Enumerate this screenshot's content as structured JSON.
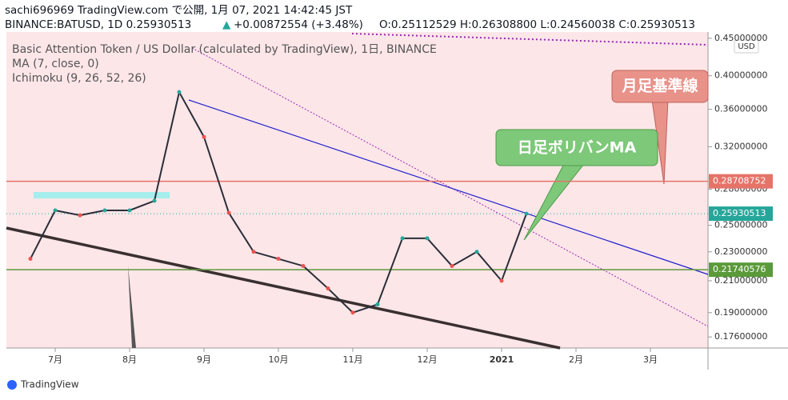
{
  "chart_data": {
    "type": "line",
    "header_line1": "sachi696969 TradingView.com で公開, 1月 07, 2021 14:42:45 JST",
    "header_symbol": "BINANCE:BATUSD, 1D 0.25930513",
    "header_arrow": "▲",
    "header_change": "+0.00872554 (+3.48%)",
    "header_ohlc": "O:0.25112529 H:0.26308800 L:0.24560038 C:0.25930513",
    "title": "Basic Attention Token / US Dollar (calculated by TradingView), 1日, BINANCE",
    "indicator_ma": "MA (7, close, 0)",
    "indicator_ichimoku": "Ichimoku (9, 26, 52, 26)",
    "currency": "USD",
    "brand": "TradingView",
    "annotations": [
      "月足基準線",
      "日足ボリバンMA"
    ],
    "log_scale": true,
    "color": "#2a2e39",
    "categories": [
      null,
      "7月",
      null,
      null,
      "8月",
      null,
      null,
      "9月",
      null,
      null,
      "10月",
      null,
      null,
      "11月",
      null,
      null,
      "12月",
      null,
      null,
      "2021",
      null,
      null,
      "2月",
      null,
      null,
      "3月",
      null,
      null
    ],
    "values": [
      0.225,
      0.262,
      0.258,
      0.262,
      0.262,
      0.27,
      0.38,
      0.33,
      0.26,
      0.23,
      0.225,
      0.22,
      0.205,
      0.19,
      0.195,
      0.24,
      0.24,
      0.22,
      0.23,
      0.21,
      0.25930513,
      null,
      null,
      null,
      null,
      null,
      null,
      null
    ],
    "ylim": [
      0.17,
      0.459
    ],
    "yticks": [
      {
        "value": 0.45,
        "label": "0.45000000"
      },
      {
        "value": 0.4,
        "label": "0.40000000"
      },
      {
        "value": 0.36,
        "label": "0.36000000"
      },
      {
        "value": 0.32,
        "label": "0.32000000"
      },
      {
        "value": 0.28,
        "label": "0.28000000"
      },
      {
        "value": 0.25,
        "label": "0.25000000"
      },
      {
        "value": 0.23,
        "label": "0.23000000"
      },
      {
        "value": 0.21,
        "label": "0.21000000"
      },
      {
        "value": 0.19,
        "label": "0.19000000"
      },
      {
        "value": 0.176,
        "label": "0.17600000"
      }
    ],
    "levels": [
      {
        "value": 0.28708752,
        "color": "#e57368"
      },
      {
        "value": 0.25930513,
        "color": "#26a69a"
      },
      {
        "value": 0.21740576,
        "color": "#5b9a3a"
      }
    ]
  }
}
